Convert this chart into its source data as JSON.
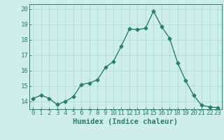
{
  "xlabel": "Humidex (Indice chaleur)",
  "x": [
    0,
    1,
    2,
    3,
    4,
    5,
    6,
    7,
    8,
    9,
    10,
    11,
    12,
    13,
    14,
    15,
    16,
    17,
    18,
    19,
    20,
    21,
    22,
    23
  ],
  "y": [
    14.2,
    14.4,
    14.2,
    13.8,
    14.0,
    14.3,
    15.1,
    15.2,
    15.4,
    16.2,
    16.6,
    17.6,
    18.7,
    18.65,
    18.75,
    19.85,
    18.85,
    18.1,
    16.5,
    15.35,
    14.4,
    13.75,
    13.65,
    13.6
  ],
  "line_color": "#2d7d6e",
  "marker": "D",
  "marker_size": 2.5,
  "line_width": 1.0,
  "bg_color": "#ceeee9",
  "grid_color": "#aad8d2",
  "tick_color": "#2d7d6e",
  "label_color": "#2d7d6e",
  "ylim": [
    13.5,
    20.3
  ],
  "yticks": [
    14,
    15,
    16,
    17,
    18,
    19,
    20
  ],
  "xlim": [
    -0.5,
    23.5
  ],
  "xlabel_fontsize": 7.5,
  "tick_fontsize": 6.5
}
